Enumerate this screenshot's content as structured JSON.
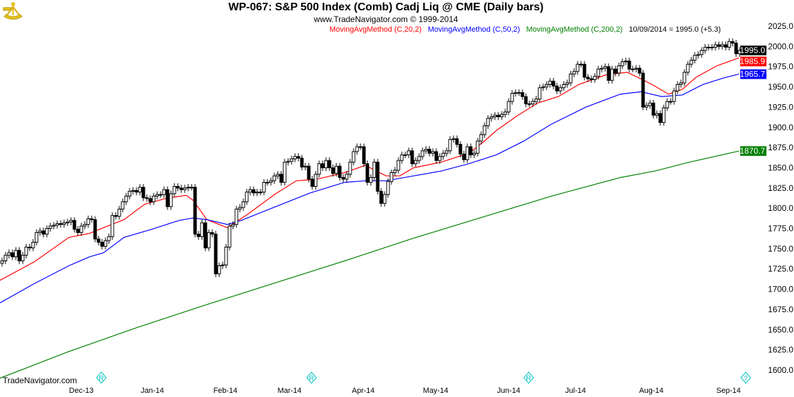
{
  "header": {
    "title": "WP-067:  S&P 500 Index (Comb) Cadj Liq @ CME  (Daily bars)",
    "subtitle": "www.TradeNavigator.com © 1999-2014",
    "legend": [
      {
        "label": "MovingAvgMethod (C,20,2)",
        "color": "#ff0000"
      },
      {
        "label": "MovingAvgMethod (C,50,2)",
        "color": "#0000ff"
      },
      {
        "label": "MovingAvgMethod (C,200,2)",
        "color": "#008000"
      },
      {
        "label": "10/09/2014 = 1995.0 (+5.3)",
        "color": "#000000"
      }
    ],
    "logo_icon": "sextant-icon",
    "watermark": "TradeNavigator.com"
  },
  "chart_data": {
    "type": "candlestick",
    "title": "WP-067:  S&P 500 Index (Comb) Cadj Liq @ CME  (Daily bars)",
    "ylim": [
      1600,
      2025
    ],
    "y_ticks": [
      "2025.0",
      "2000.0",
      "1975.0",
      "1950.0",
      "1925.0",
      "1900.0",
      "1875.0",
      "1850.0",
      "1825.0",
      "1800.0",
      "1775.0",
      "1750.0",
      "1725.0",
      "1700.0",
      "1675.0",
      "1650.0",
      "1625.0",
      "1600.0"
    ],
    "x_labels": [
      {
        "label": "Dec-13",
        "bar": 23
      },
      {
        "label": "Jan-14",
        "bar": 43.6
      },
      {
        "label": "Feb-14",
        "bar": 64.8
      },
      {
        "label": "Mar-14",
        "bar": 83.4
      },
      {
        "label": "Apr-14",
        "bar": 104.8
      },
      {
        "label": "May-14",
        "bar": 125.8
      },
      {
        "label": "Jun-14",
        "bar": 147
      },
      {
        "label": "Jul-14",
        "bar": 166.4
      },
      {
        "label": "Aug-14",
        "bar": 188.4
      },
      {
        "label": "Sep-14",
        "bar": 210.8
      }
    ],
    "event_markers": [
      {
        "symbol": "R",
        "bar": 28.8
      },
      {
        "symbol": "R",
        "bar": 89.8
      },
      {
        "symbol": "R",
        "bar": 152.8
      },
      {
        "symbol": "?",
        "bar": 215.8
      }
    ],
    "closes": [
      1735,
      1742,
      1745,
      1740,
      1748,
      1735,
      1742,
      1752,
      1751,
      1758,
      1770,
      1772,
      1768,
      1775,
      1778,
      1779,
      1781,
      1780,
      1782,
      1783,
      1785,
      1774,
      1770,
      1778,
      1780,
      1787,
      1786,
      1762,
      1758,
      1753,
      1760,
      1765,
      1791,
      1790,
      1799,
      1808,
      1815,
      1821,
      1822,
      1820,
      1826,
      1813,
      1812,
      1808,
      1815,
      1817,
      1817,
      1823,
      1802,
      1818,
      1827,
      1825,
      1823,
      1825,
      1826,
      1826,
      1768,
      1765,
      1782,
      1751,
      1770,
      1768,
      1719,
      1729,
      1730,
      1752,
      1778,
      1780,
      1799,
      1801,
      1808,
      1820,
      1823,
      1819,
      1820,
      1820,
      1832,
      1832,
      1834,
      1840,
      1842,
      1832,
      1857,
      1858,
      1861,
      1864,
      1862,
      1851,
      1852,
      1836,
      1827,
      1842,
      1855,
      1850,
      1859,
      1850,
      1843,
      1852,
      1838,
      1836,
      1842,
      1857,
      1870,
      1876,
      1876,
      1855,
      1832,
      1838,
      1857,
      1821,
      1806,
      1817,
      1833,
      1844,
      1847,
      1859,
      1866,
      1866,
      1871,
      1855,
      1859,
      1864,
      1871,
      1873,
      1868,
      1870,
      1859,
      1864,
      1868,
      1871,
      1885,
      1886,
      1879,
      1867,
      1860,
      1876,
      1866,
      1868,
      1883,
      1891,
      1902,
      1911,
      1913,
      1915,
      1913,
      1916,
      1919,
      1932,
      1942,
      1943,
      1943,
      1938,
      1929,
      1929,
      1932,
      1935,
      1949,
      1950,
      1953,
      1957,
      1951,
      1945,
      1949,
      1953,
      1955,
      1966,
      1969,
      1978,
      1978,
      1962,
      1960,
      1959,
      1963,
      1972,
      1973,
      1975,
      1958,
      1972,
      1967,
      1976,
      1981,
      1982,
      1972,
      1972,
      1973,
      1967,
      1925,
      1927,
      1930,
      1915,
      1917,
      1906,
      1924,
      1932,
      1932,
      1945,
      1953,
      1955,
      1968,
      1978,
      1983,
      1989,
      1990,
      1995,
      1999,
      1999,
      1999,
      2002,
      2000,
      2002,
      1999,
      2006,
      2004,
      1991,
      1995
    ],
    "series": [
      {
        "name": "MovingAvgMethod (C,20,2)",
        "color": "#ff0000",
        "last": "1985.9",
        "points": [
          [
            -0.6,
            1711
          ],
          [
            9.4,
            1734
          ],
          [
            19.4,
            1764
          ],
          [
            25.4,
            1769
          ],
          [
            29.4,
            1776
          ],
          [
            35.4,
            1786
          ],
          [
            41.4,
            1805
          ],
          [
            47.4,
            1812
          ],
          [
            53.4,
            1816
          ],
          [
            55.4,
            1810
          ],
          [
            59.4,
            1786
          ],
          [
            65.4,
            1776
          ],
          [
            71.4,
            1793
          ],
          [
            79.4,
            1818
          ],
          [
            85.4,
            1834
          ],
          [
            91.4,
            1836
          ],
          [
            99.4,
            1844
          ],
          [
            105.4,
            1853
          ],
          [
            111.4,
            1840
          ],
          [
            115.4,
            1840
          ],
          [
            119.4,
            1850
          ],
          [
            127.4,
            1857
          ],
          [
            135.4,
            1868
          ],
          [
            139.4,
            1881
          ],
          [
            143.4,
            1896
          ],
          [
            149.4,
            1914
          ],
          [
            155.4,
            1930
          ],
          [
            161.4,
            1938
          ],
          [
            167.4,
            1953
          ],
          [
            175.4,
            1965
          ],
          [
            181.4,
            1968
          ],
          [
            185.4,
            1960
          ],
          [
            189.4,
            1951
          ],
          [
            193.4,
            1941
          ],
          [
            197.4,
            1947
          ],
          [
            201.4,
            1962
          ],
          [
            207.4,
            1976
          ],
          [
            213.8,
            1985.9
          ]
        ]
      },
      {
        "name": "MovingAvgMethod (C,50,2)",
        "color": "#0000ff",
        "last": "1965.7",
        "points": [
          [
            -0.6,
            1683
          ],
          [
            9.4,
            1707
          ],
          [
            19.4,
            1729
          ],
          [
            25.4,
            1740
          ],
          [
            29.4,
            1745
          ],
          [
            35.4,
            1764
          ],
          [
            43.4,
            1774
          ],
          [
            51.4,
            1785
          ],
          [
            55.4,
            1788
          ],
          [
            59.4,
            1786
          ],
          [
            65.4,
            1780
          ],
          [
            69.4,
            1785
          ],
          [
            79.4,
            1802
          ],
          [
            89.4,
            1819
          ],
          [
            99.4,
            1832
          ],
          [
            105.4,
            1834
          ],
          [
            111.4,
            1834
          ],
          [
            119.4,
            1840
          ],
          [
            127.4,
            1846
          ],
          [
            135.4,
            1855
          ],
          [
            143.4,
            1866
          ],
          [
            151.4,
            1883
          ],
          [
            159.4,
            1904
          ],
          [
            169.4,
            1925
          ],
          [
            179.4,
            1941
          ],
          [
            185.4,
            1944
          ],
          [
            191.4,
            1938
          ],
          [
            197.4,
            1940
          ],
          [
            203.4,
            1953
          ],
          [
            209.4,
            1961
          ],
          [
            213.8,
            1965.7
          ]
        ]
      },
      {
        "name": "MovingAvgMethod (C,200,2)",
        "color": "#008000",
        "last": "1870.7",
        "points": [
          [
            -0.6,
            1590
          ],
          [
            19.4,
            1623
          ],
          [
            39.4,
            1653
          ],
          [
            59.4,
            1681
          ],
          [
            79.4,
            1708
          ],
          [
            99.4,
            1735
          ],
          [
            119.4,
            1763
          ],
          [
            139.4,
            1789
          ],
          [
            159.4,
            1815
          ],
          [
            179.4,
            1838
          ],
          [
            189.4,
            1846
          ],
          [
            199.4,
            1857
          ],
          [
            213.8,
            1870.7
          ]
        ]
      }
    ],
    "last_close": {
      "label": "1995.0",
      "value": 1995.0,
      "color": "#000000"
    }
  }
}
